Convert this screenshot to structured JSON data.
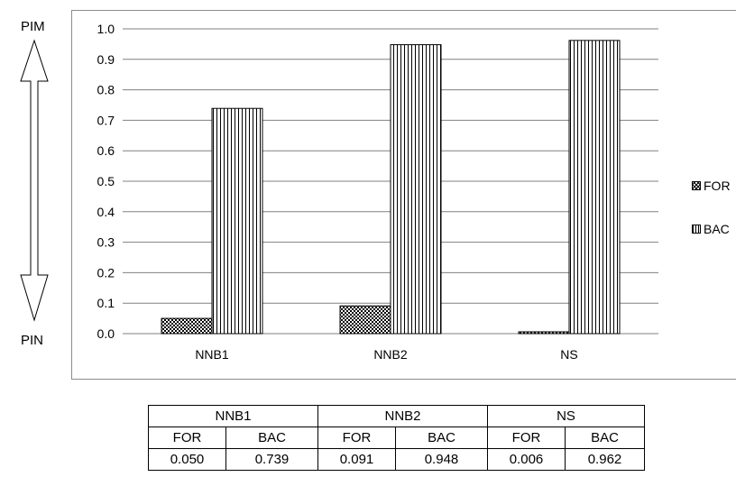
{
  "side_labels": {
    "top": "PIM",
    "bottom": "PIN"
  },
  "chart_data": {
    "type": "bar",
    "categories": [
      "NNB1",
      "NNB2",
      "NS"
    ],
    "series": [
      {
        "name": "FOR",
        "values": [
          0.05,
          0.091,
          0.006
        ],
        "pattern": "crosshatch"
      },
      {
        "name": "BAC",
        "values": [
          0.739,
          0.948,
          0.962
        ],
        "pattern": "vertical-lines"
      }
    ],
    "ylim": [
      0,
      1.0
    ],
    "yticks": [
      "0.0",
      "0.1",
      "0.2",
      "0.3",
      "0.4",
      "0.5",
      "0.6",
      "0.7",
      "0.8",
      "0.9",
      "1.0"
    ],
    "grid": true,
    "legend_position": "right",
    "title": "",
    "xlabel": "",
    "ylabel": ""
  },
  "table": {
    "groups": [
      "NNB1",
      "NNB2",
      "NS"
    ],
    "subheaders": [
      "FOR",
      "BAC",
      "FOR",
      "BAC",
      "FOR",
      "BAC"
    ],
    "values": [
      "0.050",
      "0.739",
      "0.091",
      "0.948",
      "0.006",
      "0.962"
    ]
  },
  "colors": {
    "axis": "#7f7f7f",
    "grid": "#808080",
    "bar_stroke": "#000000",
    "frame": "#8c8c8c"
  }
}
